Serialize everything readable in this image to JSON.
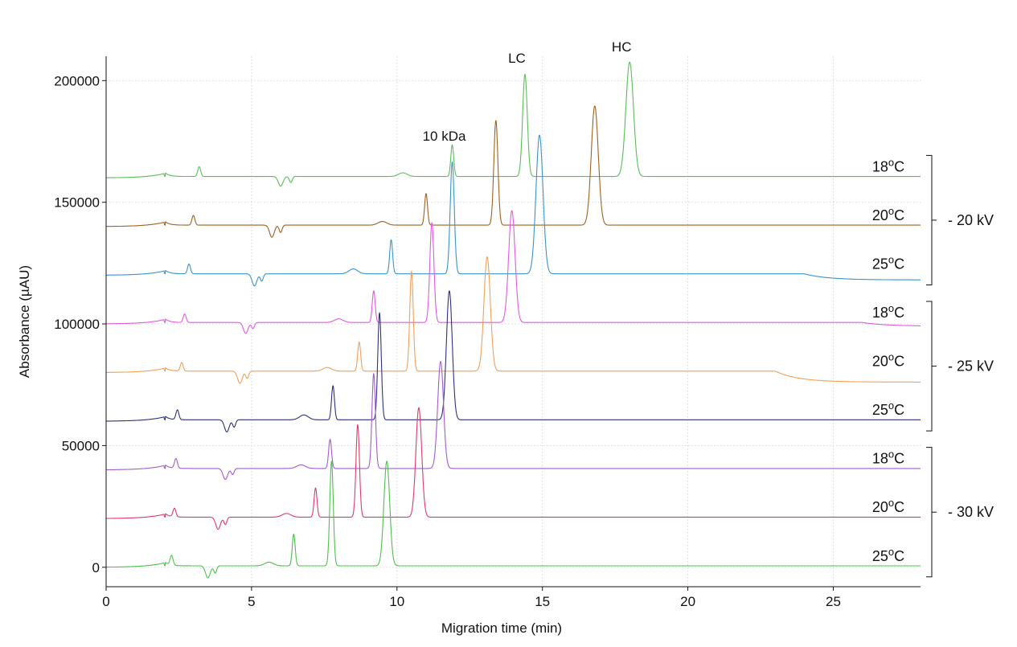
{
  "chart_data": {
    "type": "line",
    "title": "",
    "xlabel": "Migration time (min)",
    "ylabel": "Absorbance (µAU)",
    "xlim": [
      0,
      28
    ],
    "ylim": [
      -8000,
      210000
    ],
    "xticks": [
      0,
      5,
      10,
      15,
      20,
      25
    ],
    "yticks": [
      0,
      50000,
      100000,
      150000,
      200000
    ],
    "x_grid": true,
    "y_grid": true,
    "peak_annotations": [
      {
        "text": "10 kDa",
        "x": 11.9
      },
      {
        "text": "LC",
        "x": 14.4
      },
      {
        "text": "HC",
        "x": 18.0
      }
    ],
    "voltage_groups": [
      {
        "label": "- 20 kV",
        "series": [
          0,
          1,
          2
        ]
      },
      {
        "label": "- 25 kV",
        "series": [
          3,
          4,
          5
        ]
      },
      {
        "label": "- 30 kV",
        "series": [
          6,
          7,
          8
        ]
      }
    ],
    "series": [
      {
        "label_num": "18",
        "label_unit": "C",
        "color": "#5bbd5b",
        "baseline": 160000,
        "injection": 2.0,
        "spikes": [
          [
            3.2,
            4000,
            0.05
          ]
        ],
        "dips": [
          [
            6.0,
            -4000,
            0.08
          ],
          [
            6.35,
            -2500,
            0.05
          ]
        ],
        "bumps": [
          [
            10.2,
            1500,
            0.15
          ]
        ],
        "peaks": [
          [
            11.9,
            13000,
            0.05
          ],
          [
            14.4,
            42000,
            0.08
          ],
          [
            18.0,
            47000,
            0.13
          ]
        ],
        "tail_drop": 0,
        "tail_start": 27
      },
      {
        "label_num": "20",
        "label_unit": "C",
        "color": "#a0611e",
        "baseline": 140000,
        "injection": 2.0,
        "spikes": [
          [
            3.0,
            4000,
            0.05
          ]
        ],
        "dips": [
          [
            5.7,
            -5000,
            0.08
          ],
          [
            6.0,
            -3000,
            0.05
          ]
        ],
        "bumps": [
          [
            9.5,
            1500,
            0.15
          ]
        ],
        "peaks": [
          [
            11.0,
            13000,
            0.05
          ],
          [
            13.4,
            43000,
            0.07
          ],
          [
            16.8,
            49000,
            0.12
          ]
        ],
        "tail_drop": 0,
        "tail_start": 27
      },
      {
        "label_num": "25",
        "label_unit": "C",
        "color": "#3a94cd",
        "baseline": 120000,
        "injection": 2.0,
        "spikes": [
          [
            2.85,
            4000,
            0.05
          ]
        ],
        "dips": [
          [
            5.1,
            -5000,
            0.08
          ],
          [
            5.35,
            -3000,
            0.05
          ]
        ],
        "bumps": [
          [
            8.5,
            2000,
            0.15
          ]
        ],
        "peaks": [
          [
            9.8,
            14000,
            0.05
          ],
          [
            11.9,
            46000,
            0.07
          ],
          [
            14.9,
            57000,
            0.12
          ]
        ],
        "tail_drop": 2500,
        "tail_start": 24
      },
      {
        "label_num": "18",
        "label_unit": "C",
        "color": "#e05ae0",
        "baseline": 100000,
        "injection": 2.0,
        "spikes": [
          [
            2.7,
            3500,
            0.05
          ]
        ],
        "dips": [
          [
            4.8,
            -4500,
            0.08
          ],
          [
            5.05,
            -2500,
            0.05
          ]
        ],
        "bumps": [
          [
            8.0,
            1500,
            0.15
          ]
        ],
        "peaks": [
          [
            9.2,
            13000,
            0.05
          ],
          [
            11.2,
            41000,
            0.07
          ],
          [
            13.95,
            46000,
            0.11
          ]
        ],
        "tail_drop": 1500,
        "tail_start": 26
      },
      {
        "label_num": "20",
        "label_unit": "C",
        "color": "#f2a057",
        "baseline": 80000,
        "injection": 2.0,
        "spikes": [
          [
            2.6,
            3500,
            0.05
          ]
        ],
        "dips": [
          [
            4.6,
            -5000,
            0.08
          ],
          [
            4.85,
            -3000,
            0.05
          ]
        ],
        "bumps": [
          [
            7.6,
            1500,
            0.15
          ]
        ],
        "peaks": [
          [
            8.7,
            12000,
            0.05
          ],
          [
            10.5,
            41000,
            0.06
          ],
          [
            13.1,
            47000,
            0.11
          ]
        ],
        "tail_drop": 4500,
        "tail_start": 23
      },
      {
        "label_num": "25",
        "label_unit": "C",
        "color": "#2f2f80",
        "baseline": 60000,
        "injection": 2.0,
        "spikes": [
          [
            2.45,
            4000,
            0.05
          ]
        ],
        "dips": [
          [
            4.15,
            -5000,
            0.08
          ],
          [
            4.4,
            -3000,
            0.05
          ]
        ],
        "bumps": [
          [
            6.8,
            2000,
            0.15
          ]
        ],
        "peaks": [
          [
            7.8,
            14000,
            0.05
          ],
          [
            9.4,
            44000,
            0.06
          ],
          [
            11.8,
            53000,
            0.1
          ]
        ],
        "tail_drop": 0,
        "tail_start": 27
      },
      {
        "label_num": "18",
        "label_unit": "C",
        "color": "#a35ccf",
        "baseline": 40000,
        "injection": 2.0,
        "spikes": [
          [
            2.4,
            4000,
            0.05
          ]
        ],
        "dips": [
          [
            4.1,
            -4500,
            0.08
          ],
          [
            4.35,
            -2500,
            0.05
          ]
        ],
        "bumps": [
          [
            6.7,
            1500,
            0.15
          ]
        ],
        "peaks": [
          [
            7.7,
            12000,
            0.05
          ],
          [
            9.2,
            39000,
            0.06
          ],
          [
            11.5,
            44000,
            0.1
          ]
        ],
        "tail_drop": 0,
        "tail_start": 27
      },
      {
        "label_num": "20",
        "label_unit": "C",
        "color": "#dd3a6a",
        "baseline": 20000,
        "injection": 2.0,
        "spikes": [
          [
            2.35,
            3500,
            0.05
          ]
        ],
        "dips": [
          [
            3.85,
            -5000,
            0.08
          ],
          [
            4.1,
            -3000,
            0.05
          ]
        ],
        "bumps": [
          [
            6.2,
            1500,
            0.15
          ]
        ],
        "peaks": [
          [
            7.2,
            12000,
            0.05
          ],
          [
            8.65,
            38000,
            0.06
          ],
          [
            10.75,
            45000,
            0.1
          ]
        ],
        "tail_drop": 0,
        "tail_start": 27
      },
      {
        "label_num": "25",
        "label_unit": "C",
        "color": "#4fbf4f",
        "baseline": 0,
        "injection": 2.0,
        "spikes": [
          [
            2.25,
            4000,
            0.05
          ]
        ],
        "dips": [
          [
            3.5,
            -5000,
            0.08
          ],
          [
            3.75,
            -3000,
            0.05
          ]
        ],
        "bumps": [
          [
            5.6,
            1500,
            0.15
          ]
        ],
        "peaks": [
          [
            6.45,
            13000,
            0.05
          ],
          [
            7.75,
            43000,
            0.06
          ],
          [
            9.65,
            43000,
            0.1
          ]
        ],
        "tail_drop": 0,
        "tail_start": 27
      }
    ]
  }
}
